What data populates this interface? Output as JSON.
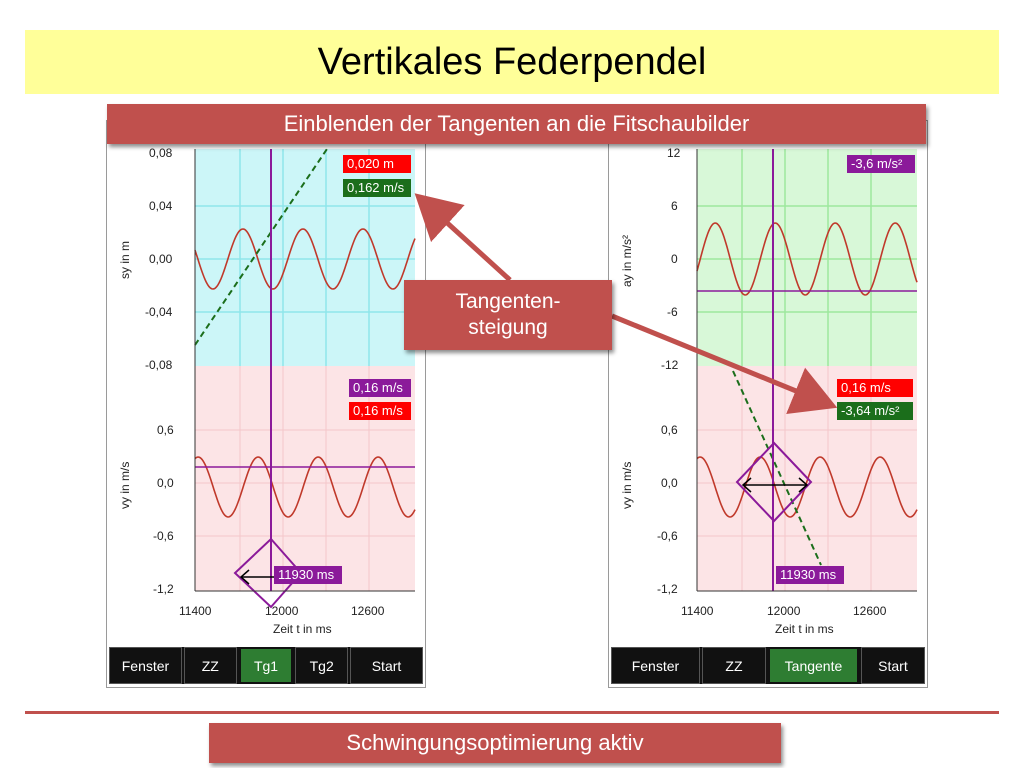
{
  "title": "Vertikales Federpendel",
  "banner": "Einblenden der Tangenten an die Fitschaubilder",
  "callout": {
    "line1": "Tangenten-",
    "line2": "steigung"
  },
  "footer": "Schwingungsoptimierung aktiv",
  "colors": {
    "accent": "#c0504d",
    "title_bg": "#ffff99",
    "curve": "#c0392b",
    "cursor": "#8b1a9a",
    "tangent": "#1b6e1b"
  },
  "left_app": {
    "top_plot": {
      "ylabel": "sy in m",
      "yticks": [
        "0,08",
        "0,04",
        "0,00",
        "-0,04",
        "-0,08"
      ],
      "ylim": [
        -0.08,
        0.08
      ],
      "value_red": "0,020 m",
      "value_green": "0,162 m/s"
    },
    "bottom_plot": {
      "ylabel": "vy in m/s",
      "yticks": [
        "0,6",
        "0,0",
        "-0,6",
        "-1,2"
      ],
      "ylim": [
        -1.2,
        1.2
      ],
      "value_purple": "0,16 m/s",
      "value_red": "0,16 m/s",
      "time_label": "11930 ms"
    },
    "xaxis": {
      "label": "Zeit t in ms",
      "ticks": [
        "11400",
        "12000",
        "12600"
      ]
    },
    "toolbar": {
      "b1": "Fenster",
      "b2": "ZZ",
      "b3": "Tg1",
      "b4": "Tg2",
      "b5": "Start"
    }
  },
  "right_app": {
    "top_plot": {
      "ylabel": "ay in m/s²",
      "yticks": [
        "12",
        "6",
        "0",
        "-6",
        "-12"
      ],
      "ylim": [
        -12,
        12
      ],
      "value_purple": "-3,6 m/s²"
    },
    "bottom_plot": {
      "ylabel": "vy in m/s",
      "yticks": [
        "0,6",
        "0,0",
        "-0,6",
        "-1,2"
      ],
      "ylim": [
        -1.2,
        1.2
      ],
      "value_red": "0,16 m/s",
      "value_green": "-3,64 m/s²",
      "time_label": "11930 ms"
    },
    "xaxis": {
      "label": "Zeit t in ms",
      "ticks": [
        "11400",
        "12000",
        "12600"
      ]
    },
    "toolbar": {
      "b1": "Fenster",
      "b2": "ZZ",
      "b3": "Tangente",
      "b4": "Start"
    }
  }
}
